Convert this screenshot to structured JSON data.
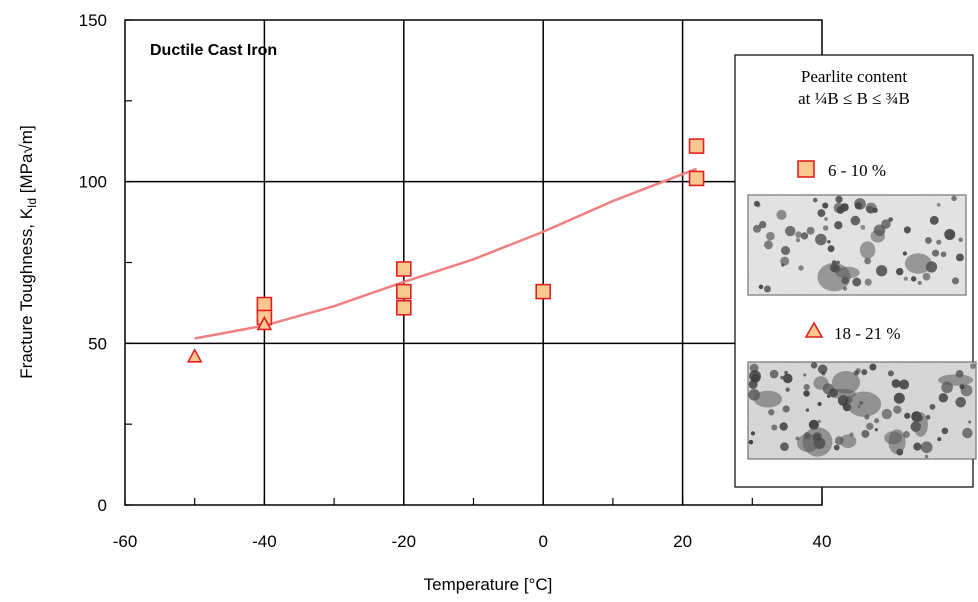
{
  "chart_data": {
    "type": "scatter",
    "title": "Ductile Cast Iron",
    "xlabel": "Temperature [°C]",
    "ylabel": "Fracture Toughness, K_Id [MPa√m]",
    "ylabel_main": "Fracture Toughness, K",
    "ylabel_sub": "Id",
    "ylabel_unit": "[MPa√m]",
    "xlim": [
      -60,
      40
    ],
    "ylim": [
      0,
      150
    ],
    "x_ticks": [
      -60,
      -40,
      -20,
      0,
      20,
      40
    ],
    "y_ticks": [
      0,
      50,
      100,
      150
    ],
    "grid": true,
    "legend_placement": "right",
    "legend": {
      "title_line1": "Pearlite content",
      "title_line2": "at ¼B ≤ B ≤ ¾B"
    },
    "series": [
      {
        "name": "6 - 10 %",
        "marker": "square",
        "color": "#f8c890",
        "edge_color": "#e02020",
        "points": [
          [
            -40,
            62
          ],
          [
            -40,
            58
          ],
          [
            -20,
            73
          ],
          [
            -20,
            66
          ],
          [
            -20,
            61
          ],
          [
            0,
            66
          ],
          [
            22,
            111
          ],
          [
            22,
            101
          ]
        ]
      },
      {
        "name": "18 - 21 %",
        "marker": "triangle",
        "color": "#f8c890",
        "edge_color": "#e02020",
        "points": [
          [
            -50,
            46
          ],
          [
            -40,
            56
          ]
        ]
      }
    ],
    "trend_line": {
      "color": "#f08080",
      "points": [
        [
          -50,
          51.5
        ],
        [
          -40,
          55.5
        ],
        [
          -30,
          61.5
        ],
        [
          -20,
          69
        ],
        [
          -10,
          76
        ],
        [
          0,
          84.5
        ],
        [
          10,
          94
        ],
        [
          22,
          104
        ]
      ]
    }
  }
}
